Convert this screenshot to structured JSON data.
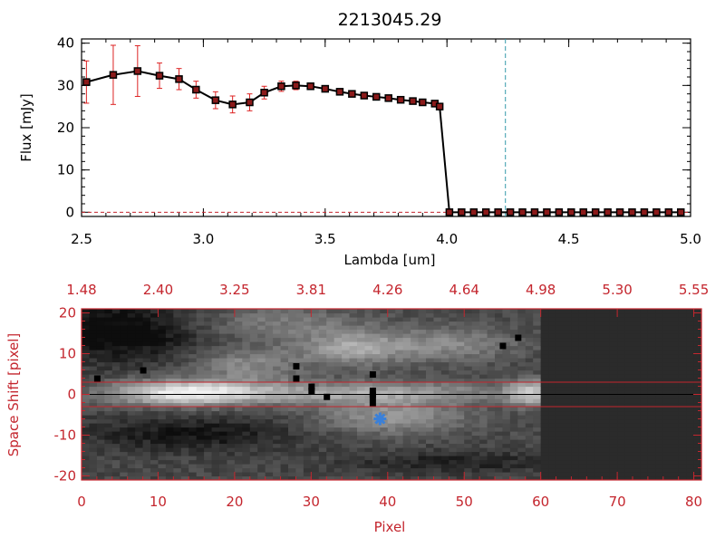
{
  "title": "2213045.29",
  "colors": {
    "spectrum": "#000000",
    "error_bars": "#dd2222",
    "marker_fill": "#8b1a1a",
    "axis2": "#c4262e",
    "cut_line": "#3399aa",
    "marker2": "#3a80d9"
  },
  "chart_data": [
    {
      "type": "line",
      "title": "2213045.29",
      "xlabel": "Lambda [um]",
      "ylabel": "Flux [mJy]",
      "xlim": [
        2.5,
        5.0
      ],
      "ylim": [
        -1,
        41
      ],
      "xticks": [
        "2.5",
        "3.0",
        "3.5",
        "4.0",
        "4.5",
        "5.0"
      ],
      "yticks": [
        "0",
        "10",
        "20",
        "30",
        "40"
      ],
      "vline": 4.24,
      "grid": false,
      "series": [
        {
          "x": [
            2.52,
            2.63,
            2.73,
            2.82,
            2.9,
            2.97,
            3.05,
            3.12,
            3.19,
            3.25,
            3.32,
            3.38,
            3.44,
            3.5,
            3.56,
            3.61,
            3.66,
            3.71,
            3.76,
            3.81,
            3.86,
            3.9,
            3.95,
            3.97,
            4.01,
            4.06,
            4.11,
            4.16,
            4.21,
            4.26,
            4.31,
            4.36,
            4.41,
            4.46,
            4.51,
            4.56,
            4.61,
            4.66,
            4.71,
            4.76,
            4.81,
            4.86,
            4.91,
            4.96
          ],
          "y": [
            30.8,
            32.5,
            33.4,
            32.3,
            31.5,
            29.0,
            26.5,
            25.5,
            26.0,
            28.3,
            29.8,
            30.0,
            29.8,
            29.2,
            28.5,
            28.0,
            27.6,
            27.3,
            27.0,
            26.6,
            26.3,
            26.0,
            25.7,
            25.0,
            0,
            0,
            0,
            0,
            0,
            0,
            0,
            0,
            0,
            0,
            0,
            0,
            0,
            0,
            0,
            0,
            0,
            0,
            0,
            0
          ],
          "err": [
            5.0,
            7.0,
            6.0,
            3.0,
            2.5,
            2.0,
            2.0,
            2.0,
            2.0,
            1.5,
            1.2,
            1.0,
            0.5,
            0.5,
            0.4,
            0.4,
            0.4,
            0.4,
            0.4,
            0.4,
            0.4,
            0.4,
            0.4,
            0.4,
            0,
            0,
            0,
            0,
            0,
            0,
            0,
            0,
            0,
            0,
            0,
            0,
            0,
            0,
            0,
            0,
            0,
            0,
            0,
            0
          ]
        }
      ]
    },
    {
      "type": "heatmap",
      "xlabel": "Pixel",
      "ylabel": "Space Shift [pixel]",
      "xlim": [
        0,
        81
      ],
      "ylim": [
        -21,
        21
      ],
      "xticks": [
        "0",
        "10",
        "20",
        "30",
        "40",
        "50",
        "60",
        "70",
        "80"
      ],
      "yticks": [
        "-20",
        "-10",
        "0",
        "10",
        "20"
      ],
      "top_axis_ticks": [
        "1.48",
        "2.40",
        "3.25",
        "3.81",
        "4.26",
        "4.64",
        "4.98",
        "5.30",
        "5.55"
      ],
      "hlines": [
        3,
        -3
      ],
      "center_line": 0,
      "data_cutoff_pixel": 60,
      "blue_marker": [
        39,
        -6
      ],
      "bad_pixels": [
        [
          2,
          4
        ],
        [
          8,
          6
        ],
        [
          28,
          7
        ],
        [
          28,
          4
        ],
        [
          30,
          2
        ],
        [
          30,
          1
        ],
        [
          32,
          -0.5
        ],
        [
          38,
          5
        ],
        [
          38,
          1
        ],
        [
          38,
          0
        ],
        [
          38,
          -0.5
        ],
        [
          38,
          -2
        ],
        [
          55,
          12
        ],
        [
          57,
          14
        ]
      ]
    }
  ]
}
